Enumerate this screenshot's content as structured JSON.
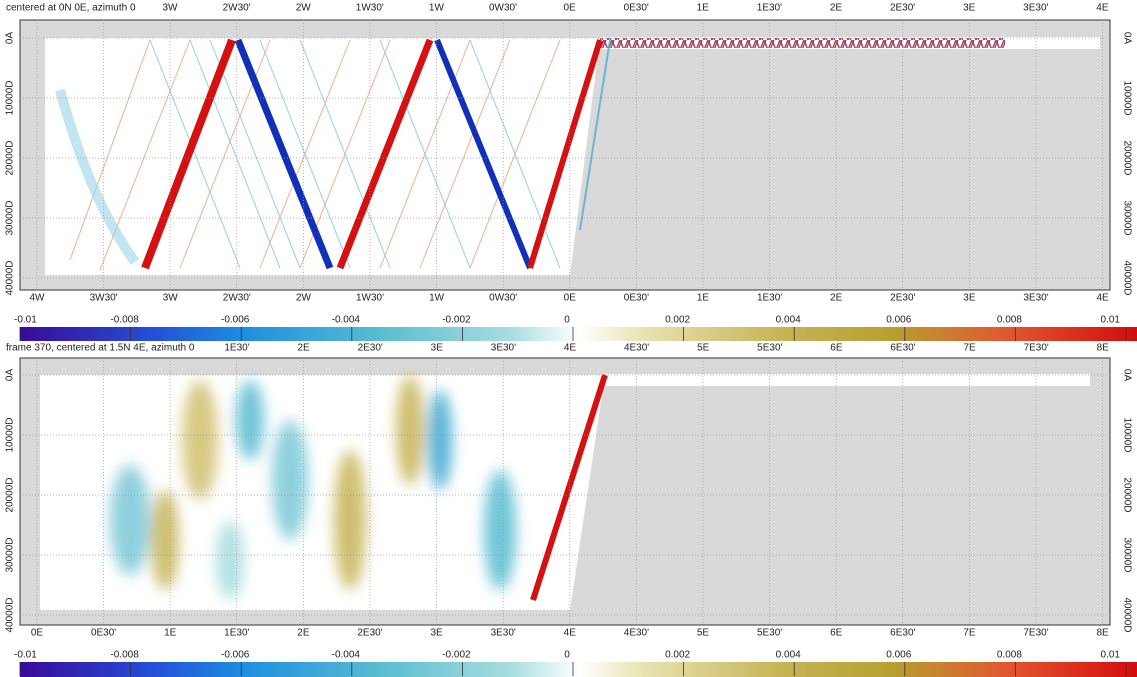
{
  "panels": [
    {
      "title": "centered at 0N 0E, azimuth 0",
      "top_ticks": [
        "3W",
        "2W30'",
        "2W",
        "1W30'",
        "1W",
        "0W30'",
        "0E",
        "0E30'",
        "1E",
        "1E30'",
        "2E",
        "2E30'",
        "3E",
        "3E30'",
        "4E"
      ],
      "bottom_ticks": [
        "4W",
        "3W30'",
        "3W",
        "2W30'",
        "2W",
        "1W30'",
        "1W",
        "0W30'",
        "0E",
        "0E30'",
        "1E",
        "1E30'",
        "2E",
        "2E30'",
        "3E",
        "3E30'",
        "4E"
      ],
      "y_ticks": [
        "0A",
        "10000D",
        "20000D",
        "30000D",
        "40000D"
      ],
      "colorbar_ticks": [
        "-0.01",
        "-0.008",
        "-0.006",
        "-0.004",
        "-0.002",
        "0",
        "0.002",
        "0.004",
        "0.006",
        "0.008",
        "0.01"
      ]
    },
    {
      "title": "frame 370, centered at 1.5N 4E, azimuth 0",
      "top_ticks": [
        "1E30'",
        "2E",
        "2E30'",
        "3E",
        "3E30'",
        "4E",
        "4E30'",
        "5E",
        "5E30'",
        "6E",
        "6E30'",
        "7E",
        "7E30'",
        "8E"
      ],
      "bottom_ticks": [
        "0E",
        "0E30'",
        "1E",
        "1E30'",
        "2E",
        "2E30'",
        "3E",
        "3E30'",
        "4E",
        "4E30'",
        "5E",
        "5E30'",
        "6E",
        "6E30'",
        "7E",
        "7E30'",
        "8E"
      ],
      "y_ticks": [
        "0A",
        "10000D",
        "20000D",
        "30000D",
        "40000D"
      ],
      "colorbar_ticks": [
        "-0.01",
        "-0.008",
        "-0.006",
        "-0.004",
        "-0.002",
        "0",
        "0.002",
        "0.004",
        "0.006",
        "0.008",
        "0.01"
      ]
    }
  ]
}
